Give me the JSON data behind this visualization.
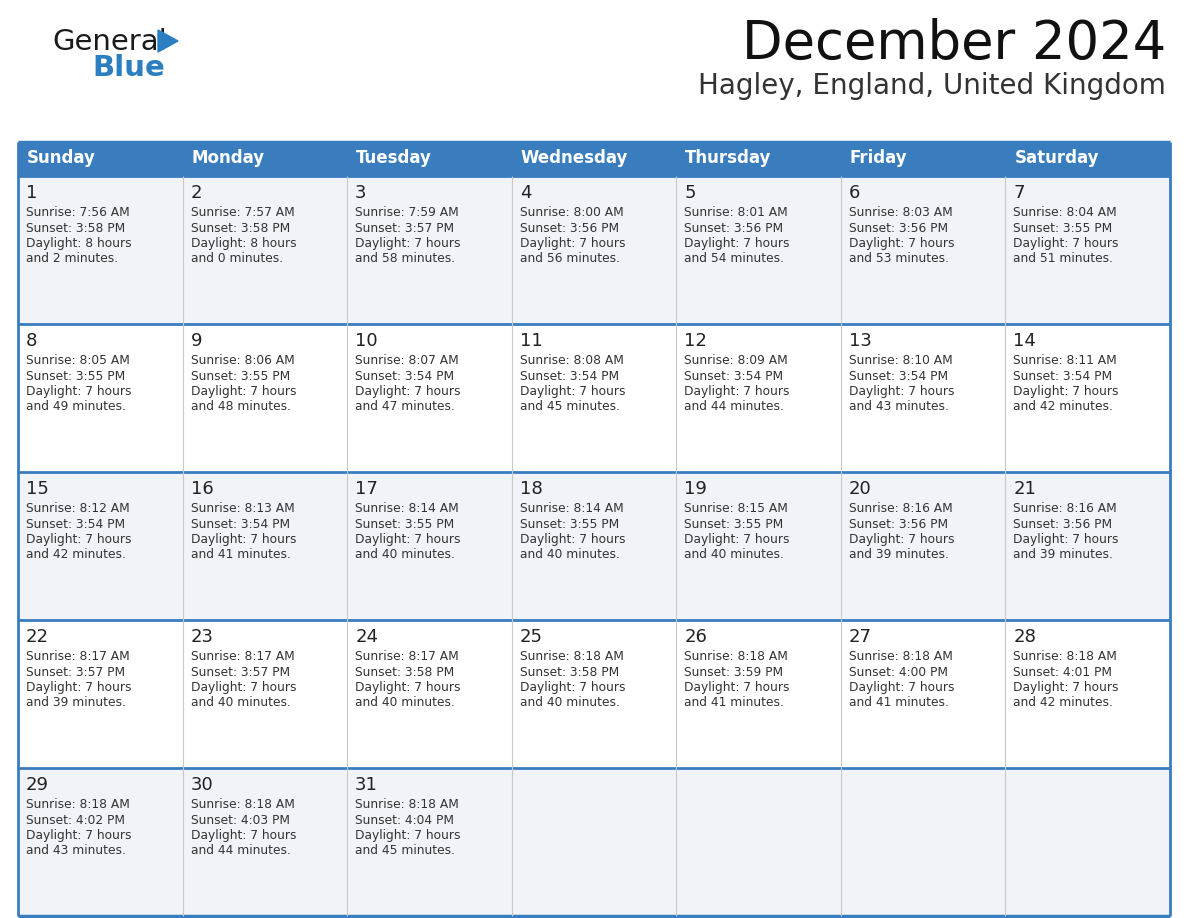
{
  "title": "December 2024",
  "subtitle": "Hagley, England, United Kingdom",
  "header_color": "#3a7dbf",
  "header_text_color": "#ffffff",
  "cell_bg_odd": "#f0f4f8",
  "cell_bg_even": "#ffffff",
  "border_color": "#3a7dbf",
  "text_color": "#333333",
  "day_number_color": "#222222",
  "day_headers": [
    "Sunday",
    "Monday",
    "Tuesday",
    "Wednesday",
    "Thursday",
    "Friday",
    "Saturday"
  ],
  "weeks": [
    [
      {
        "day": 1,
        "sunrise": "7:56 AM",
        "sunset": "3:58 PM",
        "daylight": "8 hours and 2 minutes."
      },
      {
        "day": 2,
        "sunrise": "7:57 AM",
        "sunset": "3:58 PM",
        "daylight": "8 hours and 0 minutes."
      },
      {
        "day": 3,
        "sunrise": "7:59 AM",
        "sunset": "3:57 PM",
        "daylight": "7 hours and 58 minutes."
      },
      {
        "day": 4,
        "sunrise": "8:00 AM",
        "sunset": "3:56 PM",
        "daylight": "7 hours and 56 minutes."
      },
      {
        "day": 5,
        "sunrise": "8:01 AM",
        "sunset": "3:56 PM",
        "daylight": "7 hours and 54 minutes."
      },
      {
        "day": 6,
        "sunrise": "8:03 AM",
        "sunset": "3:56 PM",
        "daylight": "7 hours and 53 minutes."
      },
      {
        "day": 7,
        "sunrise": "8:04 AM",
        "sunset": "3:55 PM",
        "daylight": "7 hours and 51 minutes."
      }
    ],
    [
      {
        "day": 8,
        "sunrise": "8:05 AM",
        "sunset": "3:55 PM",
        "daylight": "7 hours and 49 minutes."
      },
      {
        "day": 9,
        "sunrise": "8:06 AM",
        "sunset": "3:55 PM",
        "daylight": "7 hours and 48 minutes."
      },
      {
        "day": 10,
        "sunrise": "8:07 AM",
        "sunset": "3:54 PM",
        "daylight": "7 hours and 47 minutes."
      },
      {
        "day": 11,
        "sunrise": "8:08 AM",
        "sunset": "3:54 PM",
        "daylight": "7 hours and 45 minutes."
      },
      {
        "day": 12,
        "sunrise": "8:09 AM",
        "sunset": "3:54 PM",
        "daylight": "7 hours and 44 minutes."
      },
      {
        "day": 13,
        "sunrise": "8:10 AM",
        "sunset": "3:54 PM",
        "daylight": "7 hours and 43 minutes."
      },
      {
        "day": 14,
        "sunrise": "8:11 AM",
        "sunset": "3:54 PM",
        "daylight": "7 hours and 42 minutes."
      }
    ],
    [
      {
        "day": 15,
        "sunrise": "8:12 AM",
        "sunset": "3:54 PM",
        "daylight": "7 hours and 42 minutes."
      },
      {
        "day": 16,
        "sunrise": "8:13 AM",
        "sunset": "3:54 PM",
        "daylight": "7 hours and 41 minutes."
      },
      {
        "day": 17,
        "sunrise": "8:14 AM",
        "sunset": "3:55 PM",
        "daylight": "7 hours and 40 minutes."
      },
      {
        "day": 18,
        "sunrise": "8:14 AM",
        "sunset": "3:55 PM",
        "daylight": "7 hours and 40 minutes."
      },
      {
        "day": 19,
        "sunrise": "8:15 AM",
        "sunset": "3:55 PM",
        "daylight": "7 hours and 40 minutes."
      },
      {
        "day": 20,
        "sunrise": "8:16 AM",
        "sunset": "3:56 PM",
        "daylight": "7 hours and 39 minutes."
      },
      {
        "day": 21,
        "sunrise": "8:16 AM",
        "sunset": "3:56 PM",
        "daylight": "7 hours and 39 minutes."
      }
    ],
    [
      {
        "day": 22,
        "sunrise": "8:17 AM",
        "sunset": "3:57 PM",
        "daylight": "7 hours and 39 minutes."
      },
      {
        "day": 23,
        "sunrise": "8:17 AM",
        "sunset": "3:57 PM",
        "daylight": "7 hours and 40 minutes."
      },
      {
        "day": 24,
        "sunrise": "8:17 AM",
        "sunset": "3:58 PM",
        "daylight": "7 hours and 40 minutes."
      },
      {
        "day": 25,
        "sunrise": "8:18 AM",
        "sunset": "3:58 PM",
        "daylight": "7 hours and 40 minutes."
      },
      {
        "day": 26,
        "sunrise": "8:18 AM",
        "sunset": "3:59 PM",
        "daylight": "7 hours and 41 minutes."
      },
      {
        "day": 27,
        "sunrise": "8:18 AM",
        "sunset": "4:00 PM",
        "daylight": "7 hours and 41 minutes."
      },
      {
        "day": 28,
        "sunrise": "8:18 AM",
        "sunset": "4:01 PM",
        "daylight": "7 hours and 42 minutes."
      }
    ],
    [
      {
        "day": 29,
        "sunrise": "8:18 AM",
        "sunset": "4:02 PM",
        "daylight": "7 hours and 43 minutes."
      },
      {
        "day": 30,
        "sunrise": "8:18 AM",
        "sunset": "4:03 PM",
        "daylight": "7 hours and 44 minutes."
      },
      {
        "day": 31,
        "sunrise": "8:18 AM",
        "sunset": "4:04 PM",
        "daylight": "7 hours and 45 minutes."
      },
      null,
      null,
      null,
      null
    ]
  ],
  "logo_color_general": "#1a1a1a",
  "logo_color_blue": "#2b7fc1",
  "logo_triangle_color": "#2b7fc1",
  "title_fontsize": 38,
  "subtitle_fontsize": 20,
  "header_fontsize": 12,
  "day_num_fontsize": 13,
  "cell_text_fontsize": 8.8
}
